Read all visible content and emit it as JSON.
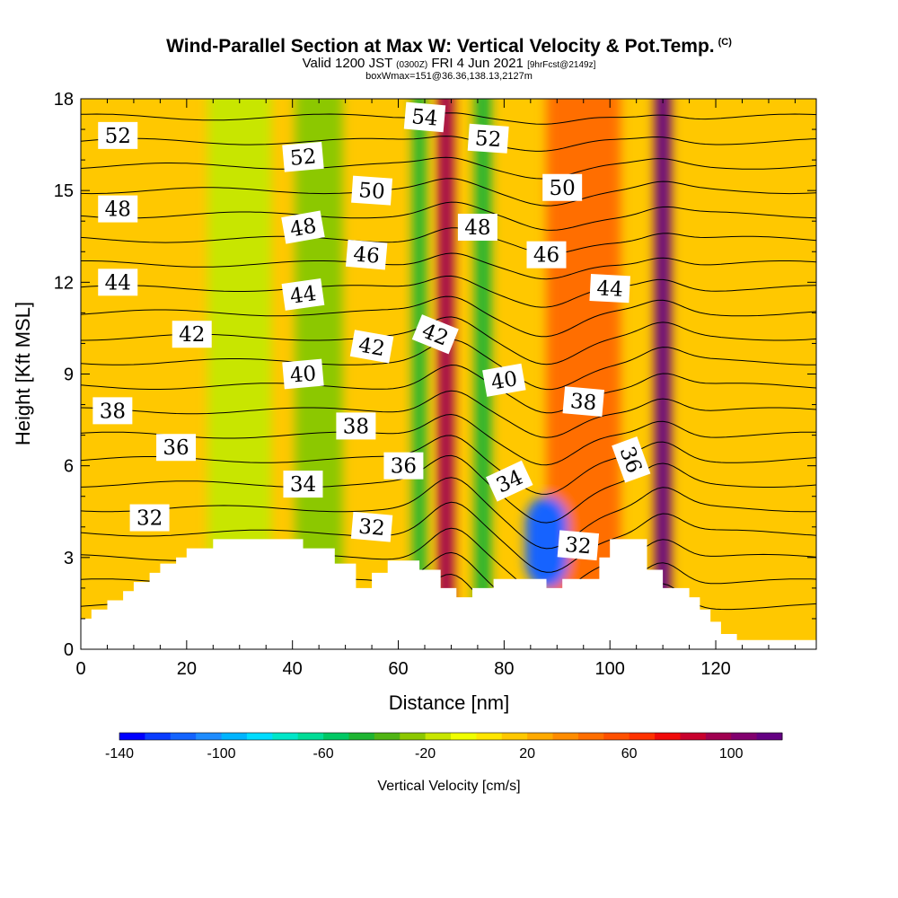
{
  "header": {
    "title": "Wind-Parallel Section at Max W: Vertical Velocity & Pot.Temp.",
    "copyright": "(C)",
    "subtitle_a": "Valid 1200 JST",
    "subtitle_b": "(0300Z)",
    "subtitle_c": "FRI 4 Jun 2021",
    "subtitle_d": "[9hrFcst@2149z]",
    "note": "boxWmax=151@36.36,138.13,2127m"
  },
  "chart_data": {
    "type": "heatmap",
    "xlabel": "Distance [nm]",
    "ylabel": "Height [Kft MSL]",
    "xlim": [
      0,
      139
    ],
    "ylim": [
      0,
      18
    ],
    "x_ticks": [
      0,
      20,
      40,
      60,
      80,
      100,
      120
    ],
    "y_ticks": [
      0,
      3,
      6,
      9,
      12,
      15,
      18
    ],
    "colorbar": {
      "title": "Vertical Velocity [cm/s]",
      "min": -140,
      "max": 120,
      "step": 10,
      "tick_labels": [
        -140,
        -100,
        -60,
        -20,
        20,
        60,
        100
      ],
      "colors": [
        "#0000ff",
        "#0a3cff",
        "#1464ff",
        "#1e8cff",
        "#00b4ff",
        "#00dcff",
        "#00e6c8",
        "#00dc96",
        "#00c864",
        "#1eb432",
        "#50b414",
        "#8cc800",
        "#c8e600",
        "#f0ff00",
        "#ffe600",
        "#ffc800",
        "#ffaa00",
        "#ff8c00",
        "#ff6e00",
        "#ff5000",
        "#ff3200",
        "#f00a0a",
        "#c8002d",
        "#a00050",
        "#82006e",
        "#640082"
      ]
    },
    "velocity_bands": [
      {
        "x": 45,
        "w": 9,
        "value": -25
      },
      {
        "x": 64,
        "w": 2.5,
        "value": -50
      },
      {
        "x": 69,
        "w": 3,
        "value": 95
      },
      {
        "x": 76,
        "w": 3,
        "value": -45
      },
      {
        "x": 95,
        "w": 14,
        "value": 40
      },
      {
        "x": 110,
        "w": 3,
        "value": 110
      },
      {
        "x": 88,
        "w": 8,
        "value": -120
      },
      {
        "x": 30,
        "w": 12,
        "value": -20
      }
    ],
    "terrain_kft": [
      [
        0,
        1
      ],
      [
        2,
        1
      ],
      [
        2,
        1.3
      ],
      [
        5,
        1.3
      ],
      [
        5,
        1.6
      ],
      [
        8,
        1.6
      ],
      [
        8,
        1.9
      ],
      [
        10,
        1.9
      ],
      [
        10,
        2.2
      ],
      [
        13,
        2.2
      ],
      [
        13,
        2.5
      ],
      [
        15,
        2.5
      ],
      [
        15,
        2.8
      ],
      [
        18,
        2.8
      ],
      [
        18,
        3
      ],
      [
        20,
        3
      ],
      [
        20,
        3.3
      ],
      [
        25,
        3.3
      ],
      [
        25,
        3.6
      ],
      [
        42,
        3.6
      ],
      [
        42,
        3.3
      ],
      [
        48,
        3.3
      ],
      [
        48,
        2.8
      ],
      [
        52,
        2.8
      ],
      [
        52,
        2
      ],
      [
        55,
        2
      ],
      [
        55,
        2.5
      ],
      [
        58,
        2.5
      ],
      [
        58,
        2.9
      ],
      [
        64,
        2.9
      ],
      [
        64,
        2.6
      ],
      [
        68,
        2.6
      ],
      [
        68,
        2
      ],
      [
        71,
        2
      ],
      [
        71,
        1.7
      ],
      [
        74,
        1.7
      ],
      [
        74,
        2
      ],
      [
        78,
        2
      ],
      [
        78,
        2.3
      ],
      [
        88,
        2.3
      ],
      [
        88,
        2
      ],
      [
        91,
        2
      ],
      [
        91,
        2.3
      ],
      [
        98,
        2.3
      ],
      [
        98,
        3
      ],
      [
        100,
        3
      ],
      [
        100,
        3.6
      ],
      [
        107,
        3.6
      ],
      [
        107,
        2.6
      ],
      [
        110,
        2.6
      ],
      [
        110,
        2
      ],
      [
        115,
        2
      ],
      [
        115,
        1.7
      ],
      [
        117,
        1.7
      ],
      [
        117,
        1.3
      ],
      [
        119,
        1.3
      ],
      [
        119,
        0.9
      ],
      [
        121,
        0.9
      ],
      [
        121,
        0.5
      ],
      [
        124,
        0.5
      ],
      [
        124,
        0.3
      ],
      [
        139,
        0.3
      ]
    ],
    "isentropes_kft_at_x0": [
      1.4,
      2.2,
      3.0,
      3.8,
      4.6,
      5.4,
      6.2,
      7.0,
      7.8,
      8.6,
      9.4,
      10.2,
      11.0,
      11.8,
      12.6,
      13.4,
      14.2,
      15.0,
      15.8,
      16.6,
      17.4
    ],
    "contour_labels": [
      {
        "x": 7,
        "y": 16.8,
        "text": "52",
        "angle": 0
      },
      {
        "x": 42,
        "y": 16.1,
        "text": "52",
        "angle": 5
      },
      {
        "x": 55,
        "y": 15.0,
        "text": "50",
        "angle": -4
      },
      {
        "x": 65,
        "y": 17.4,
        "text": "54",
        "angle": -5
      },
      {
        "x": 77,
        "y": 16.7,
        "text": "52",
        "angle": -4
      },
      {
        "x": 91,
        "y": 15.1,
        "text": "50",
        "angle": 0
      },
      {
        "x": 7,
        "y": 14.4,
        "text": "48",
        "angle": 0
      },
      {
        "x": 42,
        "y": 13.8,
        "text": "48",
        "angle": 10
      },
      {
        "x": 54,
        "y": 12.9,
        "text": "46",
        "angle": -5
      },
      {
        "x": 75,
        "y": 13.8,
        "text": "48",
        "angle": 0
      },
      {
        "x": 88,
        "y": 12.9,
        "text": "46",
        "angle": 0
      },
      {
        "x": 7,
        "y": 12.0,
        "text": "44",
        "angle": 0
      },
      {
        "x": 42,
        "y": 11.6,
        "text": "44",
        "angle": 8
      },
      {
        "x": 100,
        "y": 11.8,
        "text": "44",
        "angle": -3
      },
      {
        "x": 21,
        "y": 10.3,
        "text": "42",
        "angle": 0
      },
      {
        "x": 55,
        "y": 9.9,
        "text": "42",
        "angle": -10
      },
      {
        "x": 67,
        "y": 10.3,
        "text": "42",
        "angle": -22
      },
      {
        "x": 42,
        "y": 9.0,
        "text": "40",
        "angle": 5
      },
      {
        "x": 80,
        "y": 8.8,
        "text": "40",
        "angle": 10
      },
      {
        "x": 6,
        "y": 7.8,
        "text": "38",
        "angle": 0
      },
      {
        "x": 52,
        "y": 7.3,
        "text": "38",
        "angle": 0
      },
      {
        "x": 95,
        "y": 8.1,
        "text": "38",
        "angle": -5
      },
      {
        "x": 18,
        "y": 6.6,
        "text": "36",
        "angle": 0
      },
      {
        "x": 61,
        "y": 6.0,
        "text": "36",
        "angle": 0
      },
      {
        "x": 104,
        "y": 6.2,
        "text": "36",
        "angle": -70
      },
      {
        "x": 42,
        "y": 5.4,
        "text": "34",
        "angle": 0
      },
      {
        "x": 81,
        "y": 5.5,
        "text": "34",
        "angle": 25
      },
      {
        "x": 13,
        "y": 4.3,
        "text": "32",
        "angle": 0
      },
      {
        "x": 55,
        "y": 4.0,
        "text": "32",
        "angle": -5
      },
      {
        "x": 94,
        "y": 3.4,
        "text": "32",
        "angle": -5
      }
    ]
  }
}
